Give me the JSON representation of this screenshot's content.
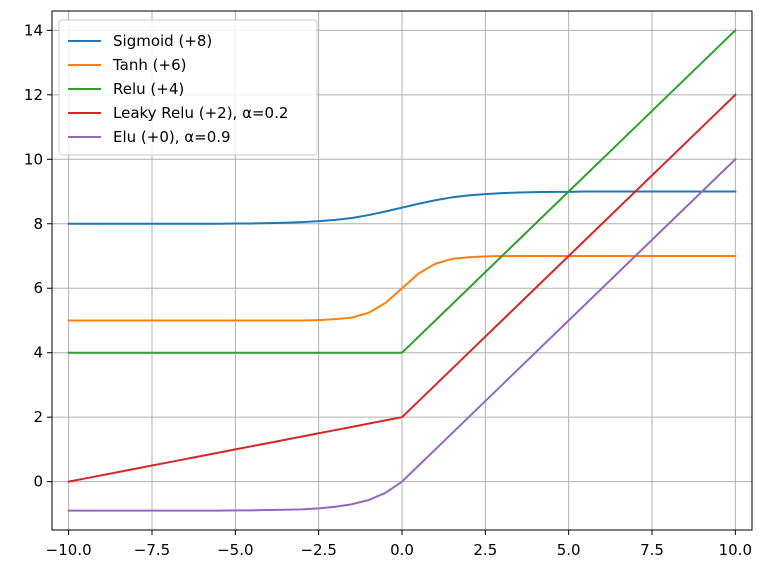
{
  "chart_data": {
    "type": "line",
    "title": "",
    "xlabel": "",
    "ylabel": "",
    "xlim": [
      -10.5,
      10.5
    ],
    "ylim": [
      -1.5,
      14.6
    ],
    "grid": true,
    "legend_position": "top-left",
    "x_ticks": [
      -10.0,
      -7.5,
      -5.0,
      -2.5,
      0.0,
      2.5,
      5.0,
      7.5,
      10.0
    ],
    "x_tick_labels": [
      "−10.0",
      "−7.5",
      "−5.0",
      "−2.5",
      "0.0",
      "2.5",
      "5.0",
      "7.5",
      "10.0"
    ],
    "y_ticks": [
      0,
      2,
      4,
      6,
      8,
      10,
      12,
      14
    ],
    "y_tick_labels": [
      "0",
      "2",
      "4",
      "6",
      "8",
      "10",
      "12",
      "14"
    ],
    "x": [
      -10.0,
      -9.5,
      -9.0,
      -8.5,
      -8.0,
      -7.5,
      -7.0,
      -6.5,
      -6.0,
      -5.5,
      -5.0,
      -4.5,
      -4.0,
      -3.5,
      -3.0,
      -2.5,
      -2.0,
      -1.5,
      -1.0,
      -0.5,
      0.0,
      0.5,
      1.0,
      1.5,
      2.0,
      2.5,
      3.0,
      3.5,
      4.0,
      4.5,
      5.0,
      5.5,
      6.0,
      6.5,
      7.0,
      7.5,
      8.0,
      8.5,
      9.0,
      9.5,
      10.0
    ],
    "series": [
      {
        "name": "Sigmoid (+8)",
        "color": "#1f77b4",
        "values": [
          8.0,
          8.0,
          8.0,
          8.0,
          8.0,
          8.0,
          8.0,
          8.0,
          8.0,
          8.0,
          8.01,
          8.01,
          8.02,
          8.03,
          8.05,
          8.08,
          8.12,
          8.18,
          8.27,
          8.38,
          8.5,
          8.62,
          8.73,
          8.82,
          8.88,
          8.92,
          8.95,
          8.97,
          8.98,
          8.99,
          8.99,
          9.0,
          9.0,
          9.0,
          9.0,
          9.0,
          9.0,
          9.0,
          9.0,
          9.0,
          9.0
        ]
      },
      {
        "name": "Tanh (+6)",
        "color": "#ff7f0e",
        "values": [
          5.0,
          5.0,
          5.0,
          5.0,
          5.0,
          5.0,
          5.0,
          5.0,
          5.0,
          5.0,
          5.0,
          5.0,
          5.0,
          5.0,
          5.0,
          5.01,
          5.04,
          5.09,
          5.24,
          5.54,
          6.0,
          6.46,
          6.76,
          6.91,
          6.96,
          6.99,
          7.0,
          7.0,
          7.0,
          7.0,
          7.0,
          7.0,
          7.0,
          7.0,
          7.0,
          7.0,
          7.0,
          7.0,
          7.0,
          7.0,
          7.0
        ]
      },
      {
        "name": "Relu (+4)",
        "color": "#2ca02c",
        "values": [
          4.0,
          4.0,
          4.0,
          4.0,
          4.0,
          4.0,
          4.0,
          4.0,
          4.0,
          4.0,
          4.0,
          4.0,
          4.0,
          4.0,
          4.0,
          4.0,
          4.0,
          4.0,
          4.0,
          4.0,
          4.0,
          4.5,
          5.0,
          5.5,
          6.0,
          6.5,
          7.0,
          7.5,
          8.0,
          8.5,
          9.0,
          9.5,
          10.0,
          10.5,
          11.0,
          11.5,
          12.0,
          12.5,
          13.0,
          13.5,
          14.0
        ]
      },
      {
        "name": "Leaky Relu (+2), α=0.2",
        "color": "#d62728",
        "values": [
          0.0,
          0.1,
          0.2,
          0.3,
          0.4,
          0.5,
          0.6,
          0.7,
          0.8,
          0.9,
          1.0,
          1.1,
          1.2,
          1.3,
          1.4,
          1.5,
          1.6,
          1.7,
          1.8,
          1.9,
          2.0,
          2.5,
          3.0,
          3.5,
          4.0,
          4.5,
          5.0,
          5.5,
          6.0,
          6.5,
          7.0,
          7.5,
          8.0,
          8.5,
          9.0,
          9.5,
          10.0,
          10.5,
          11.0,
          11.5,
          12.0
        ]
      },
      {
        "name": "Elu (+0), α=0.9",
        "color": "#9467bd",
        "values": [
          -0.9,
          -0.9,
          -0.9,
          -0.9,
          -0.9,
          -0.9,
          -0.9,
          -0.9,
          -0.9,
          -0.9,
          -0.89,
          -0.89,
          -0.88,
          -0.87,
          -0.86,
          -0.83,
          -0.78,
          -0.7,
          -0.57,
          -0.35,
          0.0,
          0.5,
          1.0,
          1.5,
          2.0,
          2.5,
          3.0,
          3.5,
          4.0,
          4.5,
          5.0,
          5.5,
          6.0,
          6.5,
          7.0,
          7.5,
          8.0,
          8.5,
          9.0,
          9.5,
          10.0
        ]
      }
    ]
  }
}
